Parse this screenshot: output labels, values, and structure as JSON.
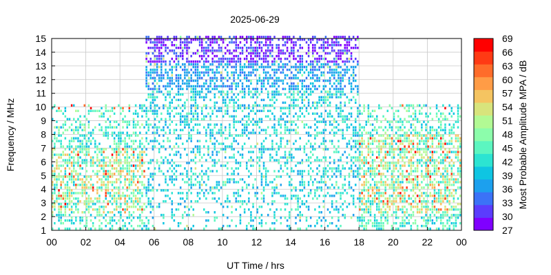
{
  "chart_data": {
    "type": "heatmap",
    "title": "2025-06-29",
    "xlabel": "UT Time / hrs",
    "ylabel": "Frequency / MHz",
    "colorbar_label": "Most Probable Amplitude MPA / dB",
    "xlim": [
      0,
      24
    ],
    "ylim": [
      1,
      15
    ],
    "x_ticks": [
      "00",
      "02",
      "04",
      "06",
      "08",
      "10",
      "12",
      "14",
      "16",
      "18",
      "20",
      "22",
      "00"
    ],
    "y_ticks": [
      "1",
      "2",
      "3",
      "4",
      "5",
      "6",
      "7",
      "8",
      "9",
      "10",
      "11",
      "12",
      "13",
      "14",
      "15"
    ],
    "colorbar_range": [
      27,
      69
    ],
    "colorbar_ticks": [
      "69",
      "66",
      "63",
      "60",
      "57",
      "54",
      "51",
      "48",
      "45",
      "42",
      "39",
      "36",
      "33",
      "30",
      "27"
    ],
    "colorbar_colors": [
      "#7f00ff",
      "#5b3cfd",
      "#3b72f7",
      "#1ca0ee",
      "#0fc5e2",
      "#2ce4d2",
      "#5cf6c0",
      "#8cfdab",
      "#b2fa94",
      "#d8e47c",
      "#f5c461",
      "#ff9c46",
      "#ff6c2a",
      "#ff3a14",
      "#ff0000"
    ],
    "grid": true,
    "legend": "right",
    "regions": [
      {
        "x": [
          0,
          5.5
        ],
        "freq_max_MHz": 10,
        "typical_amplitude_dB": [
          39,
          60
        ],
        "note_peak_band_MHz": [
          2,
          7
        ]
      },
      {
        "x": [
          5.5,
          18
        ],
        "freq_max_MHz": 15,
        "typical_amplitude_dB": [
          27,
          45
        ]
      },
      {
        "x": [
          18,
          24
        ],
        "freq_max_MHz": 10,
        "typical_amplitude_dB": [
          39,
          63
        ],
        "note_peak_band_MHz": [
          2,
          8
        ]
      }
    ]
  }
}
